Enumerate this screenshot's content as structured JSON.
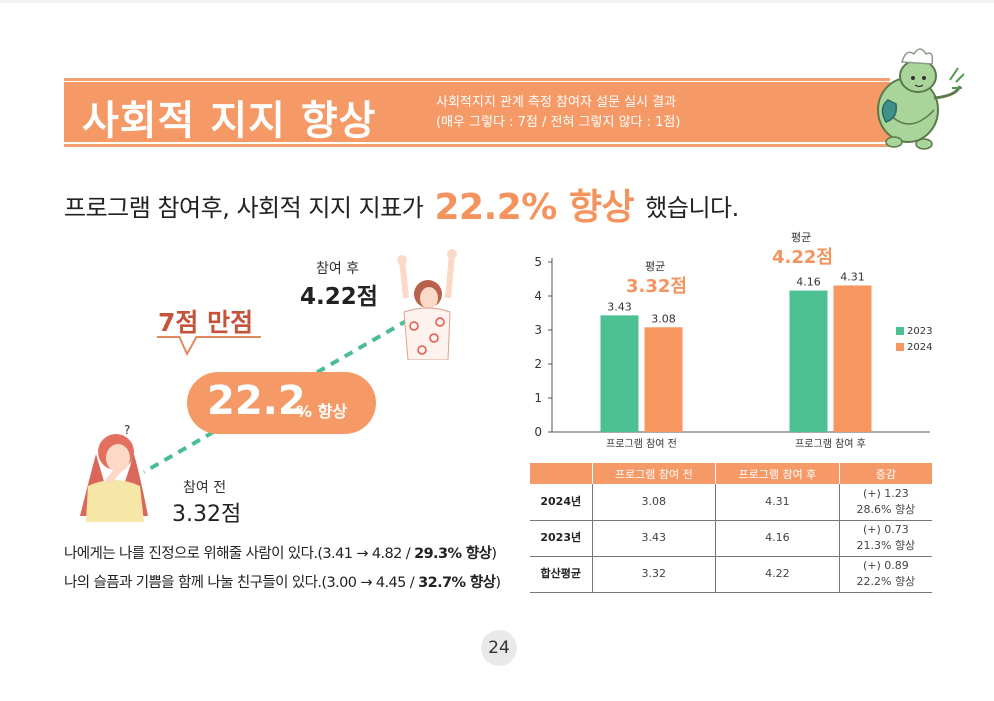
{
  "header": {
    "title": "사회적 지지 향상",
    "subtitle_line1": "사회적지지 관계 측정 참여자 설문 실시 결과",
    "subtitle_line2": "(매우 그렇다 : 7점 / 전혀 그렇지 않다 : 1점)"
  },
  "headline": {
    "prefix": "프로그램 참여후, 사회적 지지 지표가",
    "highlight": "22.2% 향상",
    "suffix": "했습니다."
  },
  "illustration": {
    "after_label": "참여 후",
    "after_value": "4.22점",
    "before_label": "참여 전",
    "before_value": "3.32점",
    "perfect_score": "7점 만점",
    "increase_number": "22.2",
    "increase_unit": "% 향상",
    "question_mark": "?"
  },
  "notes": {
    "line1_text": "나에게는 나를 진정으로 위해줄 사람이 있다.(3.41 → 4.82 / ",
    "line1_bold": "29.3% 향상",
    "line1_end": ")",
    "line2_text": "나의 슬픔과 기쁨을 함께 나눌 친구들이 있다.(3.00 → 4.45 / ",
    "line2_bold": "32.7% 향상",
    "line2_end": ")"
  },
  "chart_data": {
    "type": "bar",
    "categories": [
      "프로그램 참여 전",
      "프로그램 참여 후"
    ],
    "series": [
      {
        "name": "2023",
        "values": [
          3.43,
          4.16
        ],
        "color": "#4cc093"
      },
      {
        "name": "2024",
        "values": [
          3.08,
          4.31
        ],
        "color": "#f7965f"
      }
    ],
    "ylim": [
      0,
      5
    ],
    "yticks": [
      0,
      1,
      2,
      3,
      4,
      5
    ],
    "legend_position": "right",
    "grid": false,
    "averages": [
      {
        "label": "평균",
        "value": "3.32점"
      },
      {
        "label": "평균",
        "value": "4.22점"
      }
    ]
  },
  "table": {
    "headers": [
      "",
      "프로그램 참여 전",
      "프로그램 참여 후",
      "증감"
    ],
    "rows": [
      {
        "label": "2024년",
        "before": "3.08",
        "after": "4.31",
        "change1": "(+) 1.23",
        "change2": "28.6% 향상"
      },
      {
        "label": "2023년",
        "before": "3.43",
        "after": "4.16",
        "change1": "(+) 0.73",
        "change2": "21.3% 향상"
      },
      {
        "label": "합산평균",
        "before": "3.32",
        "after": "4.22",
        "change1": "(+) 0.89",
        "change2": "22.2% 향상"
      }
    ]
  },
  "colors": {
    "accent": "#f59a67",
    "highlight": "#f5935e",
    "green": "#4cc093",
    "dark_red": "#c4533a"
  },
  "page_number": "24"
}
